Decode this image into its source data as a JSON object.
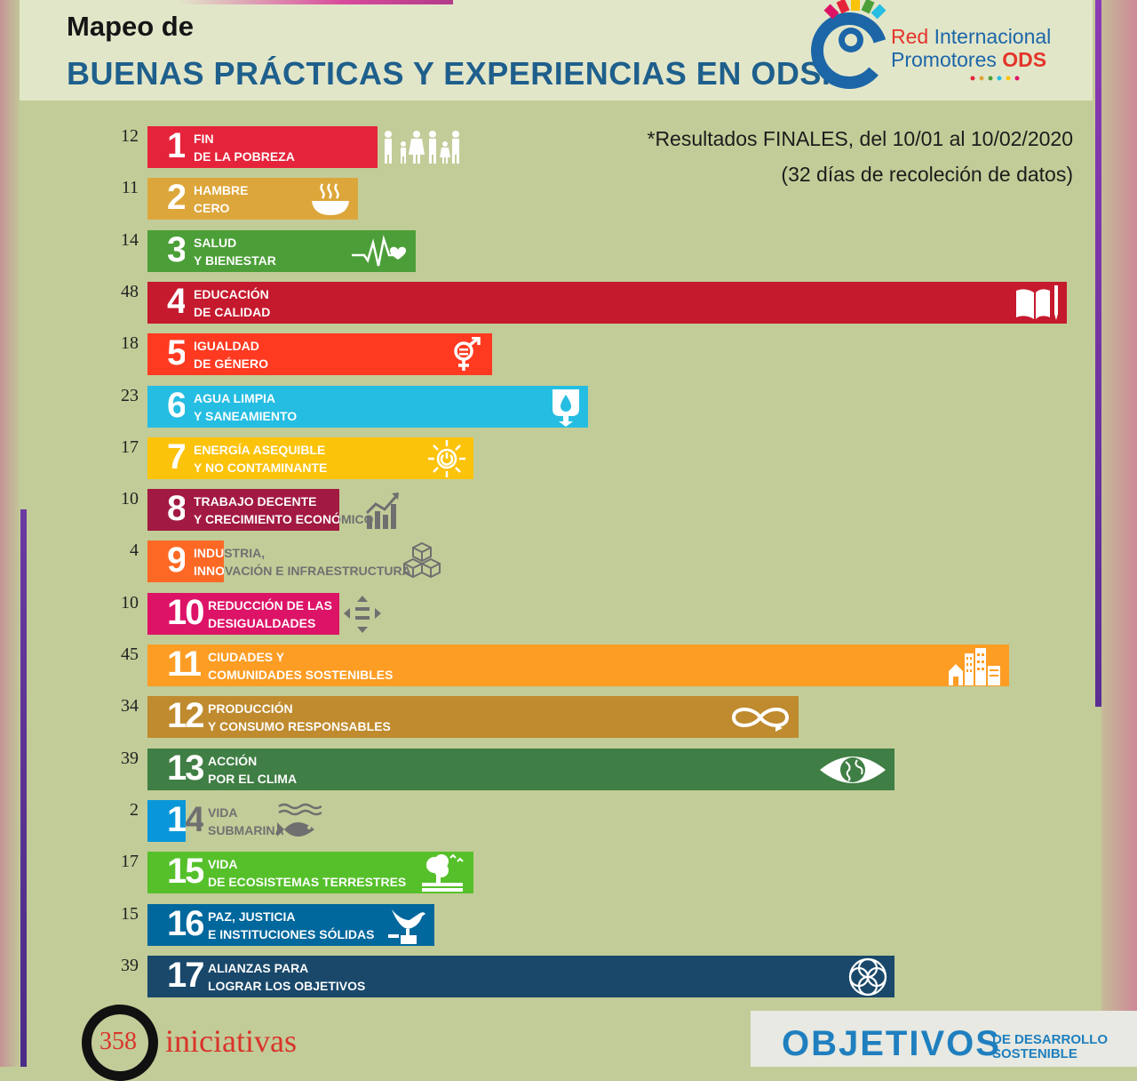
{
  "header": {
    "title_line1": "Mapeo de",
    "title_line2": "BUENAS PRÁCTICAS Y EXPERIENCIAS EN ODS."
  },
  "logo": {
    "line1_red": "Red",
    "line1_rest": " Internacional",
    "line2_blue": "Promotores ",
    "line2_red": "ODS"
  },
  "note": {
    "line1": "*Resultados FINALES, del 10/01 al 10/02/2020",
    "line2": "(32 días de recoleción de datos)"
  },
  "chart_data": {
    "type": "bar",
    "orientation": "horizontal",
    "title": "Mapeo de BUENAS PRÁCTICAS Y EXPERIENCIAS EN ODS.",
    "categories": [
      {
        "num": "1",
        "line1": "FIN",
        "line2": "DE LA POBREZA",
        "color": "#e5243b",
        "icon": "family-icon"
      },
      {
        "num": "2",
        "line1": "HAMBRE",
        "line2": "CERO",
        "color": "#dda63a",
        "icon": "bowl-icon"
      },
      {
        "num": "3",
        "line1": "SALUD",
        "line2": "Y BIENESTAR",
        "color": "#4c9f38",
        "icon": "heartbeat-icon"
      },
      {
        "num": "4",
        "line1": "EDUCACIÓN",
        "line2": "DE CALIDAD",
        "color": "#c5192d",
        "icon": "book-icon"
      },
      {
        "num": "5",
        "line1": "IGUALDAD",
        "line2": "DE GÉNERO",
        "color": "#ff3a21",
        "icon": "gender-icon"
      },
      {
        "num": "6",
        "line1": "AGUA LIMPIA",
        "line2": "Y SANEAMIENTO",
        "color": "#26bde2",
        "icon": "water-drop-icon"
      },
      {
        "num": "7",
        "line1": "ENERGÍA ASEQUIBLE",
        "line2": "Y NO CONTAMINANTE",
        "color": "#fcc30b",
        "icon": "sun-power-icon"
      },
      {
        "num": "8",
        "line1": "TRABAJO DECENTE",
        "line2": "Y CRECIMIENTO ECONÓMICO",
        "color": "#a21942",
        "icon": "growth-chart-icon"
      },
      {
        "num": "9",
        "line1": "INDUSTRIA,",
        "line2": "INNOVACIÓN E INFRAESTRUCTURA",
        "color": "#fd6925",
        "icon": "cubes-icon"
      },
      {
        "num": "10",
        "line1": "REDUCCIÓN DE LAS",
        "line2": "DESIGUALDADES",
        "color": "#dd1367",
        "icon": "equality-arrows-icon"
      },
      {
        "num": "11",
        "line1": "CIUDADES Y",
        "line2": "COMUNIDADES SOSTENIBLES",
        "color": "#fd9d24",
        "icon": "city-icon"
      },
      {
        "num": "12",
        "line1": "PRODUCCIÓN",
        "line2": "Y CONSUMO RESPONSABLES",
        "color": "#bf8b2e",
        "icon": "infinity-icon"
      },
      {
        "num": "13",
        "line1": "ACCIÓN",
        "line2": "POR EL CLIMA",
        "color": "#3f7e44",
        "icon": "eye-globe-icon"
      },
      {
        "num": "14",
        "line1": "VIDA",
        "line2": "SUBMARINA",
        "color": "#0a97d9",
        "icon": "fish-icon"
      },
      {
        "num": "15",
        "line1": "VIDA",
        "line2": "DE ECOSISTEMAS TERRESTRES",
        "color": "#56c02b",
        "icon": "tree-icon"
      },
      {
        "num": "16",
        "line1": "PAZ, JUSTICIA",
        "line2": "E INSTITUCIONES SÓLIDAS",
        "color": "#00689d",
        "icon": "dove-icon"
      },
      {
        "num": "17",
        "line1": "ALIANZAS PARA",
        "line2": "LOGRAR LOS OBJETIVOS",
        "color": "#19486a",
        "icon": "rings-icon"
      }
    ],
    "values": [
      12,
      11,
      14,
      48,
      18,
      23,
      17,
      10,
      4,
      10,
      45,
      34,
      39,
      2,
      17,
      15,
      39
    ],
    "xlim": [
      0,
      48
    ]
  },
  "total": {
    "value": "358",
    "label": "iniciativas"
  },
  "footer": {
    "main": "OBJETIVOS",
    "sub1": "DE DESARROLLO",
    "sub2": "SOSTENIBLE"
  }
}
